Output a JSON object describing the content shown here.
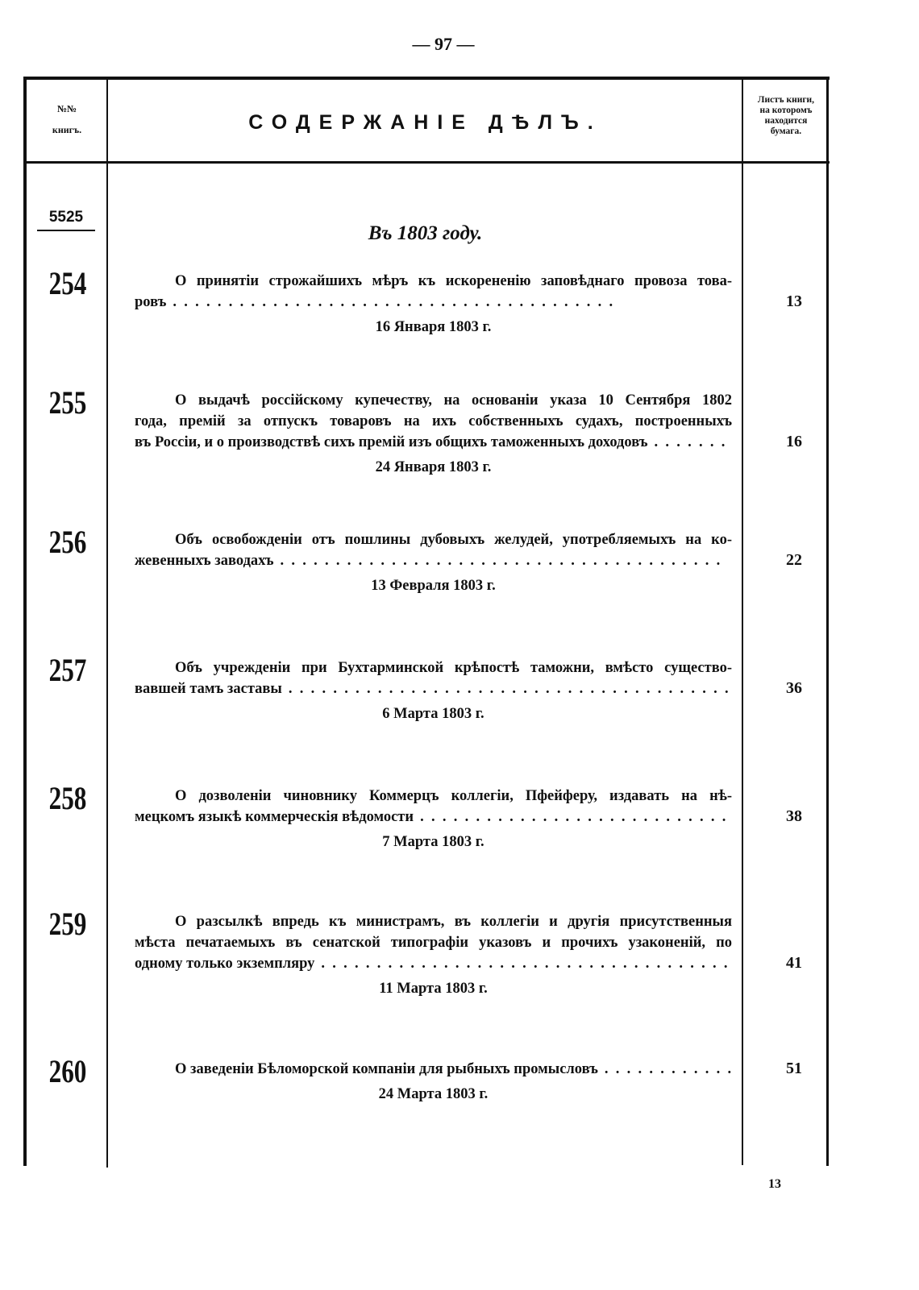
{
  "page_number": "— 97 —",
  "header": {
    "col_number": [
      "№№",
      "книгъ."
    ],
    "col_content": "СОДЕРЖАНІЕ ДѢЛЪ.",
    "col_leaf": [
      "Листъ книги,",
      "на которомъ",
      "находится",
      "бумага."
    ]
  },
  "volume": "5525",
  "year_heading": "Въ 1803 году.",
  "entries": [
    {
      "number": "254",
      "lines": [
        "О принятіи строжайшихъ мѣръ къ искорененію заповѣднаго провоза това-",
        "ровъ"
      ],
      "date": "16 Января 1803 г.",
      "leaf": "13"
    },
    {
      "number": "255",
      "lines": [
        "О выдачѣ россійскому купечеству, на основаніи указа 10 Сентября 1802",
        "года, премій за отпускъ товаровъ на ихъ собственныхъ судахъ, построенныхъ",
        "въ Россіи, и о производствѣ сихъ премій изъ общихъ таможенныхъ доходовъ"
      ],
      "date": "24 Января 1803 г.",
      "leaf": "16"
    },
    {
      "number": "256",
      "lines": [
        "Объ освобожденіи отъ пошлины дубовыхъ желудей, употребляемыхъ на ко-",
        "жевенныхъ заводахъ"
      ],
      "date": "13 Февраля 1803 г.",
      "leaf": "22"
    },
    {
      "number": "257",
      "lines": [
        "Объ учрежденіи при Бухтарминской крѣпостѣ таможни, вмѣсто существо-",
        "вавшей тамъ заставы"
      ],
      "date": "6 Марта 1803 г.",
      "leaf": "36"
    },
    {
      "number": "258",
      "lines": [
        "О дозволеніи чиновнику Коммерцъ коллегіи, Пфейферу, издавать на нѣ-",
        "мецкомъ языкѣ коммерческія вѣдомости"
      ],
      "date": "7 Марта 1803 г.",
      "leaf": "38"
    },
    {
      "number": "259",
      "lines": [
        "О разсылкѣ впредь къ министрамъ, въ коллегіи и другія присутственныя",
        "мѣста печатаемыхъ въ сенатской типографіи указовъ и прочихъ узаконеній, по",
        "одному только экземпляру"
      ],
      "date": "11 Марта 1803 г.",
      "leaf": "41"
    },
    {
      "number": "260",
      "lines": [
        "О заведеніи Бѣломорской компаніи для рыбныхъ промысловъ"
      ],
      "date": "24 Марта 1803 г.",
      "leaf": "51"
    }
  ],
  "signature_mark": "13"
}
